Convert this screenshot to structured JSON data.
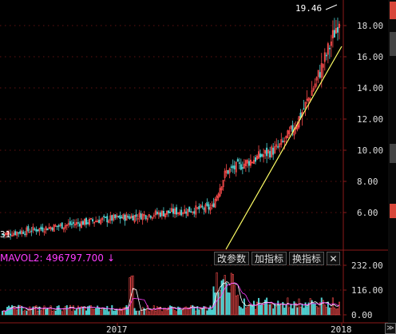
{
  "price_axis": {
    "ticks": [
      "18.00",
      "16.00",
      "14.00",
      "12.00",
      "10.00",
      "8.00",
      "6.00"
    ],
    "max_label": "19.46",
    "min_label_fragment": "31"
  },
  "volume_axis": {
    "ticks": [
      "232.00",
      "116.00",
      "0.00"
    ]
  },
  "time_axis": {
    "labels": [
      "2017",
      "2018"
    ]
  },
  "indicator": {
    "label": "MAVOL2: 496797.700",
    "arrow": "↓"
  },
  "toolbar": {
    "change_params": "改参数",
    "add_indicator": "加指标",
    "swap_indicator": "换指标",
    "close": "✕"
  },
  "scroll": {
    "label": "≫"
  },
  "colors": {
    "background": "#000000",
    "up": "#ff4d4d",
    "down": "#4fd1d1",
    "trendline": "#ffff66",
    "ma_volume": "#ff3cff",
    "grid": "#8b1a1a"
  }
}
